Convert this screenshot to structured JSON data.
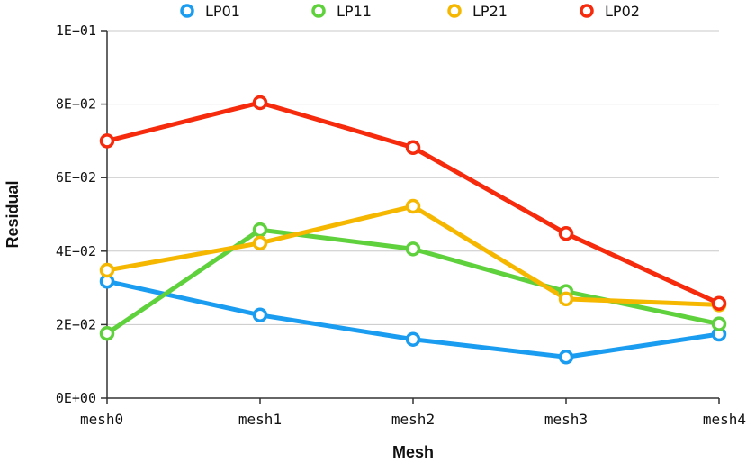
{
  "chart_data": {
    "type": "line",
    "categories": [
      "mesh0",
      "mesh1",
      "mesh2",
      "mesh3",
      "mesh4"
    ],
    "xlabel": "Mesh",
    "ylabel": "Residual",
    "ylim": [
      0,
      0.1
    ],
    "yticks": [
      0,
      0.02,
      0.04,
      0.06,
      0.08,
      0.1
    ],
    "ytick_labels": [
      "0E+00",
      "2E−02",
      "4E−02",
      "6E−02",
      "8E−02",
      "1E−01"
    ],
    "grid": "horizontal",
    "legend_position": "top",
    "series": [
      {
        "name": "LP01",
        "color": "#1a9cf0",
        "values": [
          0.0318,
          0.0226,
          0.016,
          0.0112,
          0.0174
        ]
      },
      {
        "name": "LP11",
        "color": "#5fd13c",
        "values": [
          0.0176,
          0.0458,
          0.0406,
          0.029,
          0.0202
        ]
      },
      {
        "name": "LP21",
        "color": "#f5b700",
        "values": [
          0.0348,
          0.0422,
          0.0522,
          0.027,
          0.0254
        ]
      },
      {
        "name": "LP02",
        "color": "#f62a0c",
        "values": [
          0.07,
          0.0804,
          0.0682,
          0.0448,
          0.0258
        ]
      }
    ]
  }
}
